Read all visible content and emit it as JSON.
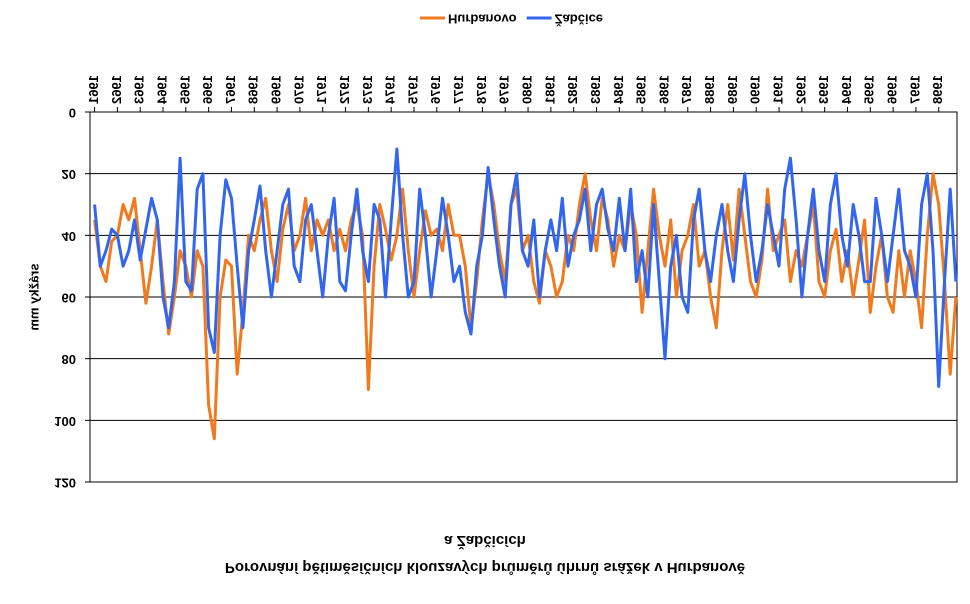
{
  "chart_data": {
    "type": "line",
    "title": [
      "Porovnání pětiměsíčních klouzavých průměrů úhrnů srážek v Hurbanově",
      "a Žabčicích"
    ],
    "y_label": "srážky mm",
    "legend": "bottom",
    "grid": true,
    "xlim": [
      1960.8,
      1998.8
    ],
    "xticks": [
      1961,
      1962,
      1963,
      1964,
      1965,
      1966,
      1967,
      1968,
      1969,
      1970,
      1971,
      1972,
      1973,
      1974,
      1975,
      1976,
      1977,
      1978,
      1979,
      1980,
      1981,
      1982,
      1983,
      1984,
      1985,
      1986,
      1987,
      1988,
      1989,
      1990,
      1991,
      1992,
      1993,
      1994,
      1995,
      1996,
      1997,
      1998
    ],
    "ylim": [
      0,
      120
    ],
    "yticks": [
      0,
      20,
      40,
      60,
      80,
      100,
      120
    ],
    "x": [
      1961,
      1961.25,
      1961.5,
      1961.75,
      1962,
      1962.25,
      1962.5,
      1962.75,
      1963,
      1963.25,
      1963.5,
      1963.75,
      1964,
      1964.25,
      1964.5,
      1964.75,
      1965,
      1965.25,
      1965.5,
      1965.75,
      1966,
      1966.25,
      1966.5,
      1966.75,
      1967,
      1967.25,
      1967.5,
      1967.75,
      1968,
      1968.25,
      1968.5,
      1968.75,
      1969,
      1969.25,
      1969.5,
      1969.75,
      1970,
      1970.25,
      1970.5,
      1970.75,
      1971,
      1971.25,
      1971.5,
      1971.75,
      1972,
      1972.25,
      1972.5,
      1972.75,
      1973,
      1973.25,
      1973.5,
      1973.75,
      1974,
      1974.25,
      1974.5,
      1974.75,
      1975,
      1975.25,
      1975.5,
      1975.75,
      1976,
      1976.25,
      1976.5,
      1976.75,
      1977,
      1977.25,
      1977.5,
      1977.75,
      1978,
      1978.25,
      1978.5,
      1978.75,
      1979,
      1979.25,
      1979.5,
      1979.75,
      1980,
      1980.25,
      1980.5,
      1980.75,
      1981,
      1981.25,
      1981.5,
      1981.75,
      1982,
      1982.25,
      1982.5,
      1982.75,
      1983,
      1983.25,
      1983.5,
      1983.75,
      1984,
      1984.25,
      1984.5,
      1984.75,
      1985,
      1985.25,
      1985.5,
      1985.75,
      1986,
      1986.25,
      1986.5,
      1986.75,
      1987,
      1987.25,
      1987.5,
      1987.75,
      1988,
      1988.25,
      1988.5,
      1988.75,
      1989,
      1989.25,
      1989.5,
      1989.75,
      1990,
      1990.25,
      1990.5,
      1990.75,
      1991,
      1991.25,
      1991.5,
      1991.75,
      1992,
      1992.25,
      1992.5,
      1992.75,
      1993,
      1993.25,
      1993.5,
      1993.75,
      1994,
      1994.25,
      1994.5,
      1994.75,
      1995,
      1995.25,
      1995.5,
      1995.75,
      1996,
      1996.25,
      1996.5,
      1996.75,
      1997,
      1997.25,
      1997.5,
      1997.75,
      1998,
      1998.25,
      1998.5,
      1998.75
    ],
    "series": [
      {
        "name": "Hurbanovo",
        "color": "#f07a1e",
        "values": [
          35,
          50,
          55,
          42,
          40,
          30,
          35,
          28,
          45,
          62,
          50,
          35,
          55,
          72,
          60,
          45,
          50,
          60,
          45,
          50,
          95,
          106,
          60,
          48,
          50,
          85,
          65,
          40,
          45,
          35,
          28,
          45,
          55,
          38,
          30,
          45,
          40,
          28,
          45,
          35,
          40,
          35,
          45,
          38,
          45,
          35,
          30,
          40,
          90,
          50,
          30,
          38,
          48,
          40,
          25,
          45,
          60,
          45,
          32,
          40,
          38,
          45,
          30,
          40,
          40,
          50,
          70,
          55,
          35,
          20,
          30,
          45,
          55,
          30,
          25,
          45,
          40,
          55,
          62,
          45,
          50,
          60,
          55,
          40,
          45,
          30,
          20,
          35,
          45,
          28,
          35,
          50,
          40,
          45,
          30,
          40,
          65,
          45,
          25,
          40,
          50,
          35,
          60,
          45,
          40,
          30,
          50,
          45,
          60,
          70,
          45,
          30,
          48,
          25,
          40,
          55,
          60,
          48,
          25,
          45,
          40,
          35,
          55,
          45,
          50,
          40,
          30,
          55,
          60,
          45,
          38,
          55,
          45,
          60,
          48,
          35,
          65,
          50,
          40,
          60,
          65,
          45,
          60,
          45,
          55,
          70,
          40,
          20,
          30,
          55,
          85,
          60
        ]
      },
      {
        "name": "Žabčice",
        "color": "#3366ee",
        "values": [
          30,
          50,
          45,
          38,
          40,
          50,
          45,
          35,
          48,
          38,
          28,
          35,
          60,
          70,
          55,
          15,
          55,
          58,
          25,
          20,
          70,
          78,
          40,
          22,
          28,
          50,
          70,
          45,
          35,
          24,
          45,
          60,
          45,
          30,
          25,
          50,
          55,
          35,
          30,
          45,
          60,
          40,
          28,
          55,
          58,
          40,
          25,
          45,
          55,
          30,
          35,
          60,
          35,
          12,
          40,
          60,
          55,
          25,
          40,
          60,
          45,
          28,
          40,
          55,
          50,
          65,
          72,
          50,
          40,
          18,
          35,
          50,
          60,
          30,
          20,
          45,
          50,
          35,
          60,
          45,
          35,
          45,
          28,
          50,
          40,
          35,
          25,
          45,
          30,
          25,
          38,
          45,
          28,
          45,
          25,
          55,
          45,
          60,
          30,
          55,
          80,
          50,
          40,
          60,
          65,
          35,
          25,
          45,
          55,
          40,
          30,
          45,
          55,
          35,
          20,
          40,
          55,
          45,
          30,
          40,
          50,
          25,
          15,
          35,
          60,
          40,
          25,
          45,
          55,
          30,
          20,
          40,
          50,
          30,
          40,
          55,
          55,
          28,
          40,
          55,
          40,
          25,
          45,
          50,
          60,
          30,
          20,
          45,
          89,
          55,
          25,
          55
        ]
      }
    ]
  }
}
